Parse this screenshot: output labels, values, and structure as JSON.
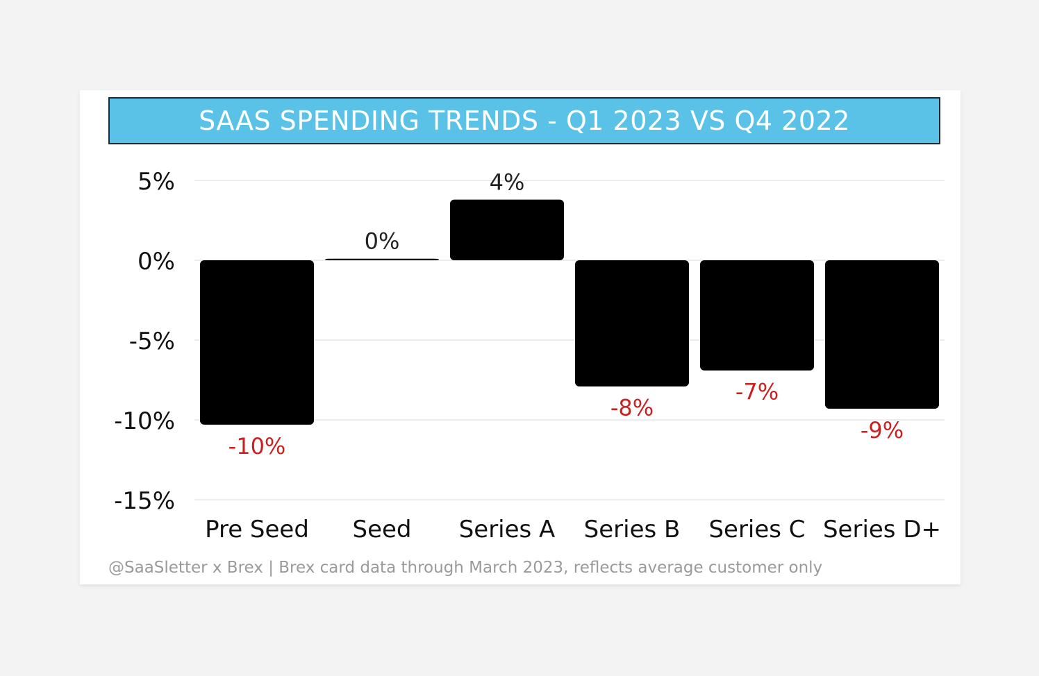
{
  "chart_data": {
    "type": "bar",
    "title": "SAAS SPENDING TRENDS - Q1 2023 VS Q4 2022",
    "categories": [
      "Pre Seed",
      "Seed",
      "Series A",
      "Series B",
      "Series C",
      "Series D+"
    ],
    "values": [
      -10.3,
      0.1,
      3.8,
      -7.9,
      -6.9,
      -9.3
    ],
    "data_labels": [
      "-10%",
      "0%",
      "4%",
      "-8%",
      "-7%",
      "-9%"
    ],
    "ylim": [
      -15,
      5
    ],
    "y_ticks": [
      5,
      0,
      -5,
      -10,
      -15
    ],
    "y_tick_labels": [
      "5%",
      "0%",
      "-5%",
      "-10%",
      "-15%"
    ],
    "xlabel": "",
    "ylabel": "",
    "grid": true,
    "colors": {
      "bar": "#000000",
      "negative_label": "#cc1f1f",
      "positive_label": "#222222",
      "title_bg": "#5bc2e7",
      "grid": "#ececec"
    }
  },
  "footer": "@SaaSletter x Brex | Brex card data through March 2023, reflects average customer only"
}
